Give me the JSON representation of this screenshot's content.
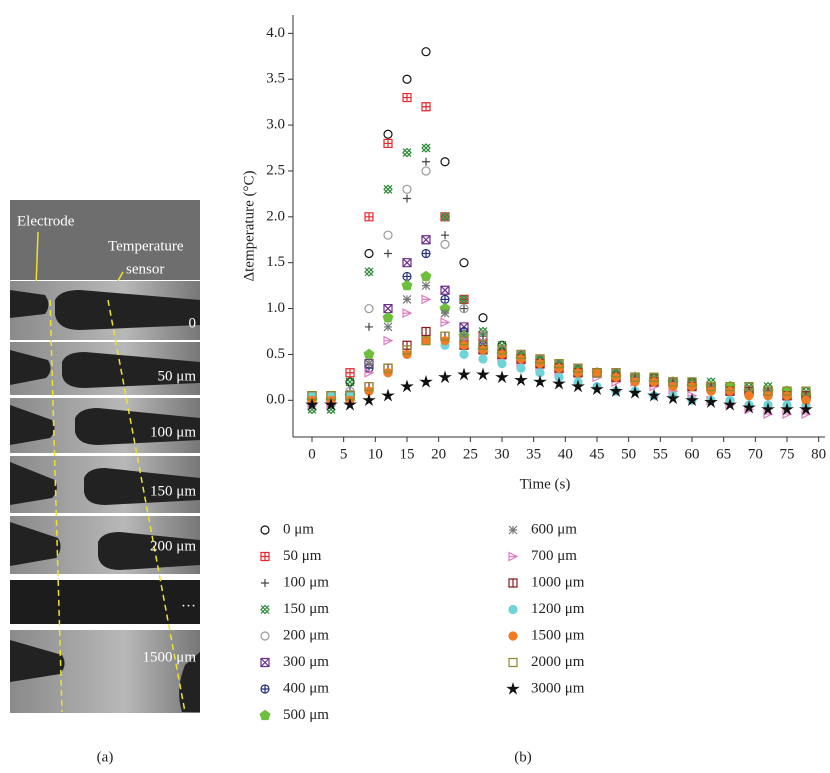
{
  "panel_a": {
    "electrode": "Electrode",
    "sensor_line1": "Temperature",
    "sensor_line2": "sensor",
    "frames": [
      "0",
      "50 μm",
      "100 μm",
      "150 μm",
      "200 μm",
      "…",
      "1500 μm"
    ],
    "label": "(a)"
  },
  "panel_b_label": "(b)",
  "chart_data": {
    "type": "scatter",
    "x_label": "Time (s)",
    "y_label": "Δtemperature (°C)",
    "xlim": [
      -3,
      81
    ],
    "ylim": [
      -0.4,
      4.2
    ],
    "xticks": [
      0,
      5,
      10,
      15,
      20,
      25,
      30,
      35,
      40,
      45,
      50,
      55,
      60,
      65,
      70,
      75,
      80
    ],
    "yticks": [
      {
        "value": 0,
        "label": "0.0"
      },
      {
        "value": 0.5,
        "label": "0.5"
      },
      {
        "value": 1,
        "label": "1.0"
      },
      {
        "value": 1.5,
        "label": "1.5"
      },
      {
        "value": 2,
        "label": "2.0"
      },
      {
        "value": 2.5,
        "label": "2.5"
      },
      {
        "value": 3,
        "label": "3.0"
      },
      {
        "value": 3.5,
        "label": "3.5"
      },
      {
        "value": 4,
        "label": "4.0"
      }
    ],
    "grid": false,
    "legend": "below",
    "x": [
      0,
      3,
      6,
      9,
      12,
      15,
      18,
      21,
      24,
      27,
      30,
      33,
      36,
      39,
      42,
      45,
      48,
      51,
      54,
      57,
      60,
      63,
      66,
      69,
      72,
      75,
      78
    ],
    "series": [
      {
        "name": "0 μm",
        "color": "#111111",
        "marker": "circle-open",
        "values": [
          0,
          0,
          0.2,
          1.6,
          2.9,
          3.5,
          3.8,
          2.6,
          1.5,
          0.9,
          0.6,
          0.5,
          0.45,
          0.4,
          0.35,
          0.3,
          0.3,
          0.25,
          0.25,
          0.2,
          0.2,
          0.15,
          0.15,
          0.1,
          0.1,
          0.1,
          0.05
        ]
      },
      {
        "name": "50 μm",
        "color": "#e8262b",
        "marker": "square-plus",
        "values": [
          0.05,
          0.05,
          0.3,
          2.0,
          2.8,
          3.3,
          3.2,
          2.0,
          1.1,
          0.7,
          0.55,
          0.5,
          0.45,
          0.4,
          0.35,
          0.3,
          0.3,
          0.25,
          0.25,
          0.2,
          0.2,
          0.15,
          0.15,
          0.1,
          0.1,
          0.1,
          0.05
        ]
      },
      {
        "name": "100 μm",
        "color": "#444444",
        "marker": "plus",
        "values": [
          0,
          0,
          0.1,
          0.8,
          1.6,
          2.2,
          2.6,
          1.8,
          1.0,
          0.7,
          0.55,
          0.5,
          0.45,
          0.4,
          0.35,
          0.3,
          0.3,
          0.25,
          0.2,
          0.2,
          0.15,
          0.15,
          0.1,
          0.1,
          0.1,
          0.05,
          0.05
        ]
      },
      {
        "name": "150 μm",
        "color": "#2e8b3a",
        "marker": "x-box",
        "values": [
          -0.1,
          -0.1,
          0.2,
          1.4,
          2.3,
          2.7,
          2.75,
          2.0,
          1.1,
          0.75,
          0.6,
          0.5,
          0.45,
          0.4,
          0.35,
          0.3,
          0.3,
          0.25,
          0.25,
          0.2,
          0.2,
          0.2,
          0.15,
          0.15,
          0.15,
          0.1,
          0.1
        ]
      },
      {
        "name": "200 μm",
        "color": "#999999",
        "marker": "circle-open",
        "values": [
          0,
          0,
          0.1,
          1.0,
          1.8,
          2.3,
          2.5,
          1.7,
          1.0,
          0.7,
          0.55,
          0.5,
          0.45,
          0.4,
          0.35,
          0.3,
          0.3,
          0.25,
          0.2,
          0.2,
          0.15,
          0.15,
          0.1,
          0.1,
          0.05,
          0.05,
          0
        ]
      },
      {
        "name": "300 μm",
        "color": "#6a2c8e",
        "marker": "square-x",
        "values": [
          0,
          0,
          0.05,
          0.4,
          1.0,
          1.5,
          1.75,
          1.2,
          0.8,
          0.6,
          0.5,
          0.45,
          0.4,
          0.35,
          0.3,
          0.3,
          0.25,
          0.25,
          0.2,
          0.2,
          0.15,
          0.15,
          0.1,
          0.1,
          0.1,
          0.05,
          0.05
        ]
      },
      {
        "name": "400 μm",
        "color": "#24307a",
        "marker": "circle-plus",
        "values": [
          0,
          0,
          0.05,
          0.35,
          0.9,
          1.35,
          1.6,
          1.1,
          0.75,
          0.6,
          0.5,
          0.45,
          0.4,
          0.35,
          0.3,
          0.3,
          0.25,
          0.25,
          0.2,
          0.2,
          0.15,
          0.15,
          0.1,
          0.1,
          0.1,
          0.05,
          0.05
        ]
      },
      {
        "name": "500 μm",
        "color": "#6dbf3c",
        "marker": "pentagon",
        "values": [
          0,
          0,
          0.05,
          0.5,
          0.9,
          1.25,
          1.35,
          1.0,
          0.7,
          0.55,
          0.5,
          0.45,
          0.4,
          0.35,
          0.3,
          0.3,
          0.25,
          0.25,
          0.2,
          0.2,
          0.15,
          0.15,
          0.15,
          0.1,
          0.1,
          0.1,
          0.05
        ]
      },
      {
        "name": "600 μm",
        "color": "#777777",
        "marker": "asterisk",
        "values": [
          0,
          0,
          0.05,
          0.4,
          0.8,
          1.1,
          1.25,
          0.95,
          0.7,
          0.55,
          0.5,
          0.45,
          0.4,
          0.35,
          0.3,
          0.3,
          0.25,
          0.25,
          0.2,
          0.2,
          0.15,
          0.15,
          0.1,
          0.1,
          0.1,
          0.05,
          0.05
        ]
      },
      {
        "name": "700 μm",
        "color": "#e07cc0",
        "marker": "triangle-right",
        "values": [
          -0.05,
          -0.05,
          0,
          0.3,
          0.65,
          0.95,
          1.1,
          0.85,
          0.65,
          0.55,
          0.45,
          0.4,
          0.35,
          0.3,
          0.3,
          0.25,
          0.2,
          0.2,
          0.15,
          0.1,
          0.05,
          0,
          -0.05,
          -0.1,
          -0.15,
          -0.15,
          -0.15
        ]
      },
      {
        "name": "1000 μm",
        "color": "#8b1a1a",
        "marker": "square-line",
        "values": [
          0.05,
          0.05,
          0.05,
          0.15,
          0.35,
          0.6,
          0.75,
          0.7,
          0.6,
          0.55,
          0.5,
          0.45,
          0.4,
          0.35,
          0.3,
          0.3,
          0.25,
          0.25,
          0.2,
          0.2,
          0.15,
          0.15,
          0.1,
          0.1,
          0.1,
          0.05,
          0.05
        ]
      },
      {
        "name": "1200 μm",
        "color": "#6fd3d8",
        "marker": "circle",
        "values": [
          0.05,
          0.05,
          0.05,
          0.1,
          0.3,
          0.5,
          0.65,
          0.6,
          0.5,
          0.45,
          0.4,
          0.35,
          0.3,
          0.25,
          0.2,
          0.15,
          0.1,
          0.1,
          0.05,
          0.05,
          0,
          0,
          0,
          -0.05,
          -0.05,
          -0.05,
          -0.05
        ]
      },
      {
        "name": "1500 μm",
        "color": "#f07b22",
        "marker": "circle",
        "values": [
          0,
          0,
          0,
          0.1,
          0.3,
          0.5,
          0.65,
          0.65,
          0.6,
          0.55,
          0.5,
          0.45,
          0.4,
          0.35,
          0.3,
          0.3,
          0.25,
          0.2,
          0.2,
          0.15,
          0.15,
          0.1,
          0.1,
          0.05,
          0.05,
          0.05,
          0
        ]
      },
      {
        "name": "2000 μm",
        "color": "#8c8a2a",
        "marker": "square",
        "values": [
          0.05,
          0.05,
          0.05,
          0.15,
          0.35,
          0.55,
          0.65,
          0.7,
          0.65,
          0.6,
          0.55,
          0.5,
          0.45,
          0.4,
          0.35,
          0.3,
          0.3,
          0.25,
          0.25,
          0.2,
          0.2,
          0.15,
          0.15,
          0.15,
          0.1,
          0.1,
          0.1
        ]
      },
      {
        "name": "3000 μm",
        "color": "#111111",
        "marker": "star",
        "values": [
          -0.05,
          -0.05,
          -0.05,
          0,
          0.05,
          0.15,
          0.2,
          0.25,
          0.28,
          0.28,
          0.25,
          0.22,
          0.2,
          0.18,
          0.15,
          0.12,
          0.1,
          0.08,
          0.05,
          0.02,
          0,
          -0.02,
          -0.05,
          -0.08,
          -0.1,
          -0.1,
          -0.1
        ]
      }
    ]
  }
}
